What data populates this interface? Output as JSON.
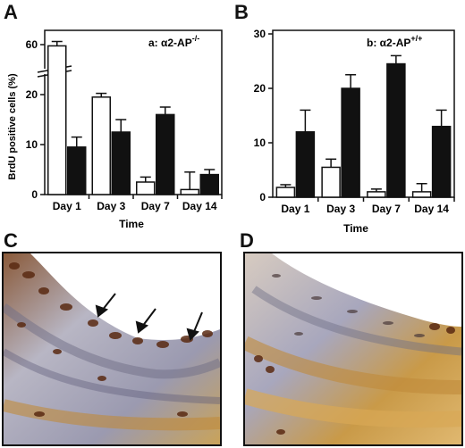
{
  "panels": {
    "a": {
      "letter": "A"
    },
    "b": {
      "letter": "B"
    },
    "c": {
      "letter": "C"
    },
    "d": {
      "letter": "D"
    }
  },
  "chart_data": [
    {
      "type": "bar",
      "panel": "A",
      "annotation": "a: α2-AP",
      "annotation_sup": "-/-",
      "ylabel": "BrdU positive cells (%)",
      "xlabel": "Time",
      "categories": [
        "Day 1",
        "Day 3",
        "Day 7",
        "Day 14"
      ],
      "y_ticks": [
        "0",
        "10",
        "20",
        "60"
      ],
      "axis_break": true,
      "series": [
        {
          "color": "#ffffff",
          "values": [
            59,
            19.5,
            2.5,
            1
          ],
          "errors": [
            3.5,
            1.5,
            1,
            3.5
          ]
        },
        {
          "color": "#111111",
          "values": [
            9.5,
            12.5,
            16,
            4
          ],
          "errors": [
            2,
            2.5,
            1.5,
            1
          ]
        }
      ]
    },
    {
      "type": "bar",
      "panel": "B",
      "annotation": "b: α2-AP",
      "annotation_sup": "+/+",
      "xlabel": "Time",
      "categories": [
        "Day 1",
        "Day 3",
        "Day 7",
        "Day 14"
      ],
      "y_ticks": [
        "0",
        "10",
        "20",
        "30"
      ],
      "ylim": [
        0,
        30
      ],
      "series": [
        {
          "color": "#ffffff",
          "values": [
            1.8,
            5.5,
            1,
            1
          ],
          "errors": [
            0.5,
            1.5,
            0.5,
            1.5
          ]
        },
        {
          "color": "#111111",
          "values": [
            12,
            20,
            24.5,
            13
          ],
          "errors": [
            4,
            2.5,
            1.5,
            3
          ]
        }
      ]
    }
  ]
}
